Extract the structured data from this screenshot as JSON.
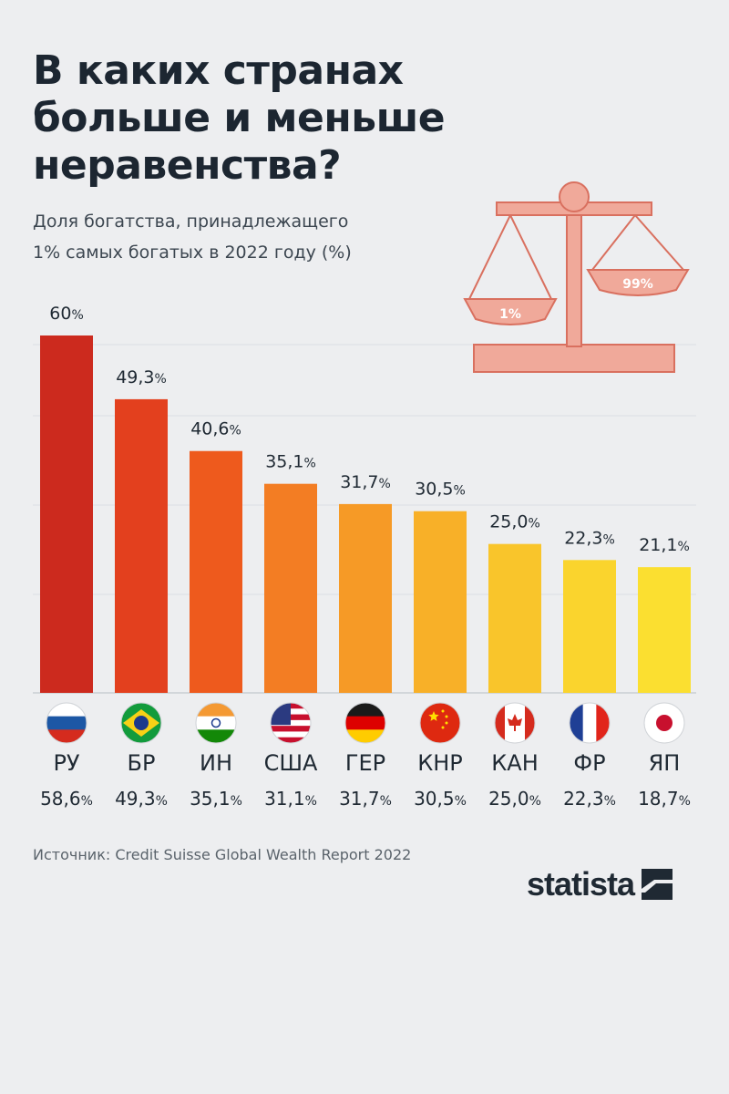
{
  "title_lines": [
    "В каких странах",
    "больше и меньше",
    "неравенства?"
  ],
  "subtitle_lines": [
    "Доля богатства, принадлежащего",
    "1% самых богатых в 2022 году (%)"
  ],
  "illustration": {
    "left_pan_label": "1%",
    "right_pan_label": "99%",
    "color": "#f0a99a"
  },
  "chart_data": {
    "type": "bar",
    "title": "В каких странах больше и меньше неравенства?",
    "subtitle": "Доля богатства, принадлежащего 1% самых богатых в 2022 году (%)",
    "categories": [
      "РУ",
      "БР",
      "ИН",
      "США",
      "ГЕР",
      "КНР",
      "КАН",
      "ФР",
      "ЯП"
    ],
    "flags": [
      "russia-flag",
      "brazil-flag",
      "india-flag",
      "usa-flag",
      "germany-flag",
      "china-flag",
      "canada-flag",
      "france-flag",
      "japan-flag"
    ],
    "values": [
      60,
      49.3,
      40.6,
      35.1,
      31.7,
      30.5,
      25.0,
      22.3,
      21.1
    ],
    "value_labels": [
      "60",
      "49,3",
      "40,6",
      "35,1",
      "31,7",
      "30,5",
      "25,0",
      "22,3",
      "21,1"
    ],
    "second_row_labels": [
      "58,6",
      "49,3",
      "35,1",
      "31,1",
      "31,7",
      "30,5",
      "25,0",
      "22,3",
      "18,7"
    ],
    "unit": "%",
    "colors": [
      "#cc2a1e",
      "#e3401e",
      "#ee5a1d",
      "#f37d23",
      "#f69a26",
      "#f8b028",
      "#f9c52b",
      "#fad42d",
      "#fbdf30"
    ],
    "ylim": [
      0,
      60
    ],
    "grid": true,
    "xlabel": "",
    "ylabel": ""
  },
  "source": "Источник: Credit Suisse Global Wealth Report 2022",
  "logo": "statista"
}
